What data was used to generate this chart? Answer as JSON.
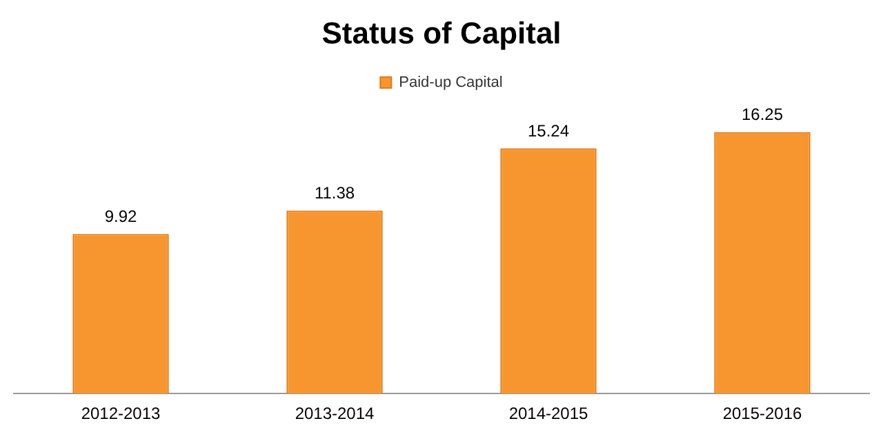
{
  "chart_data": {
    "type": "bar",
    "title": "Status of Capital",
    "categories": [
      "2012-2013",
      "2013-2014",
      "2014-2015",
      "2015-2016"
    ],
    "series": [
      {
        "name": "Paid-up Capital",
        "color": "#f7962f",
        "values": [
          9.92,
          11.38,
          15.24,
          16.25
        ]
      }
    ],
    "data_labels": true,
    "legend": "top",
    "grid": false
  }
}
